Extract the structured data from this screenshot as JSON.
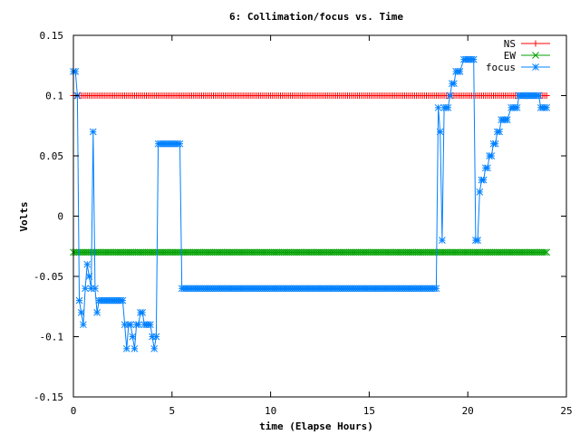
{
  "chart_data": {
    "type": "line",
    "title": "6: Collimation/focus vs. Time",
    "xlabel": "time (Elapse Hours)",
    "ylabel": "Volts",
    "xlim": [
      0,
      25
    ],
    "ylim": [
      -0.15,
      0.15
    ],
    "xticks": [
      0,
      5,
      10,
      15,
      20,
      25
    ],
    "xtick_labels": [
      "0",
      "5",
      "10",
      "15",
      "20",
      "25"
    ],
    "yticks": [
      -0.15,
      -0.1,
      -0.05,
      0,
      0.05,
      0.1,
      0.15
    ],
    "ytick_labels": [
      "-0.15",
      "-0.1",
      "-0.05",
      "0",
      "0.05",
      "0.1",
      "0.15"
    ],
    "grid": false,
    "legend_position": "top-right",
    "series": [
      {
        "name": "NS",
        "color": "#ff0000",
        "marker": "plus",
        "x": [
          0,
          24
        ],
        "y": [
          0.1,
          0.1
        ]
      },
      {
        "name": "EW",
        "color": "#00a000",
        "marker": "cross",
        "x": [
          0,
          24
        ],
        "y": [
          -0.03,
          -0.03
        ]
      },
      {
        "name": "focus",
        "color": "#0080ff",
        "marker": "star",
        "x": [
          0,
          0.1,
          0.2,
          0.3,
          0.4,
          0.5,
          0.6,
          0.7,
          0.8,
          0.9,
          1.0,
          1.1,
          1.2,
          1.3,
          1.4,
          1.5,
          2.0,
          2.5,
          2.6,
          2.7,
          2.8,
          2.9,
          3.0,
          3.1,
          3.2,
          3.3,
          3.4,
          3.5,
          3.6,
          3.7,
          3.8,
          3.9,
          4.0,
          4.1,
          4.2,
          4.3,
          4.4,
          4.5,
          4.6,
          5.0,
          5.4,
          5.5,
          5.6,
          10.0,
          15.0,
          18.4,
          18.5,
          18.6,
          18.7,
          18.8,
          18.9,
          19.0,
          19.1,
          19.2,
          19.3,
          19.4,
          19.6,
          19.8,
          19.9,
          20.0,
          20.3,
          20.4,
          20.5,
          20.6,
          20.7,
          20.8,
          20.9,
          21.0,
          21.1,
          21.2,
          21.3,
          21.4,
          21.5,
          21.6,
          21.7,
          21.8,
          22.0,
          22.2,
          22.5,
          22.6,
          23.0,
          23.5,
          23.6,
          23.7,
          23.8,
          24.0
        ],
        "y": [
          0.12,
          0.12,
          0.1,
          -0.07,
          -0.08,
          -0.09,
          -0.06,
          -0.04,
          -0.05,
          -0.06,
          0.07,
          -0.06,
          -0.08,
          -0.07,
          -0.07,
          -0.07,
          -0.07,
          -0.07,
          -0.09,
          -0.11,
          -0.09,
          -0.09,
          -0.1,
          -0.11,
          -0.09,
          -0.09,
          -0.08,
          -0.08,
          -0.09,
          -0.09,
          -0.09,
          -0.09,
          -0.1,
          -0.11,
          -0.1,
          0.06,
          0.06,
          0.06,
          0.06,
          0.06,
          0.06,
          -0.06,
          -0.06,
          -0.06,
          -0.06,
          -0.06,
          0.09,
          0.07,
          -0.02,
          0.09,
          0.09,
          0.09,
          0.1,
          0.11,
          0.11,
          0.12,
          0.12,
          0.13,
          0.13,
          0.13,
          0.13,
          -0.02,
          -0.02,
          0.02,
          0.03,
          0.03,
          0.04,
          0.04,
          0.05,
          0.05,
          0.06,
          0.06,
          0.07,
          0.07,
          0.08,
          0.08,
          0.08,
          0.09,
          0.09,
          0.1,
          0.1,
          0.1,
          0.1,
          0.09,
          0.09,
          0.09
        ]
      }
    ]
  }
}
